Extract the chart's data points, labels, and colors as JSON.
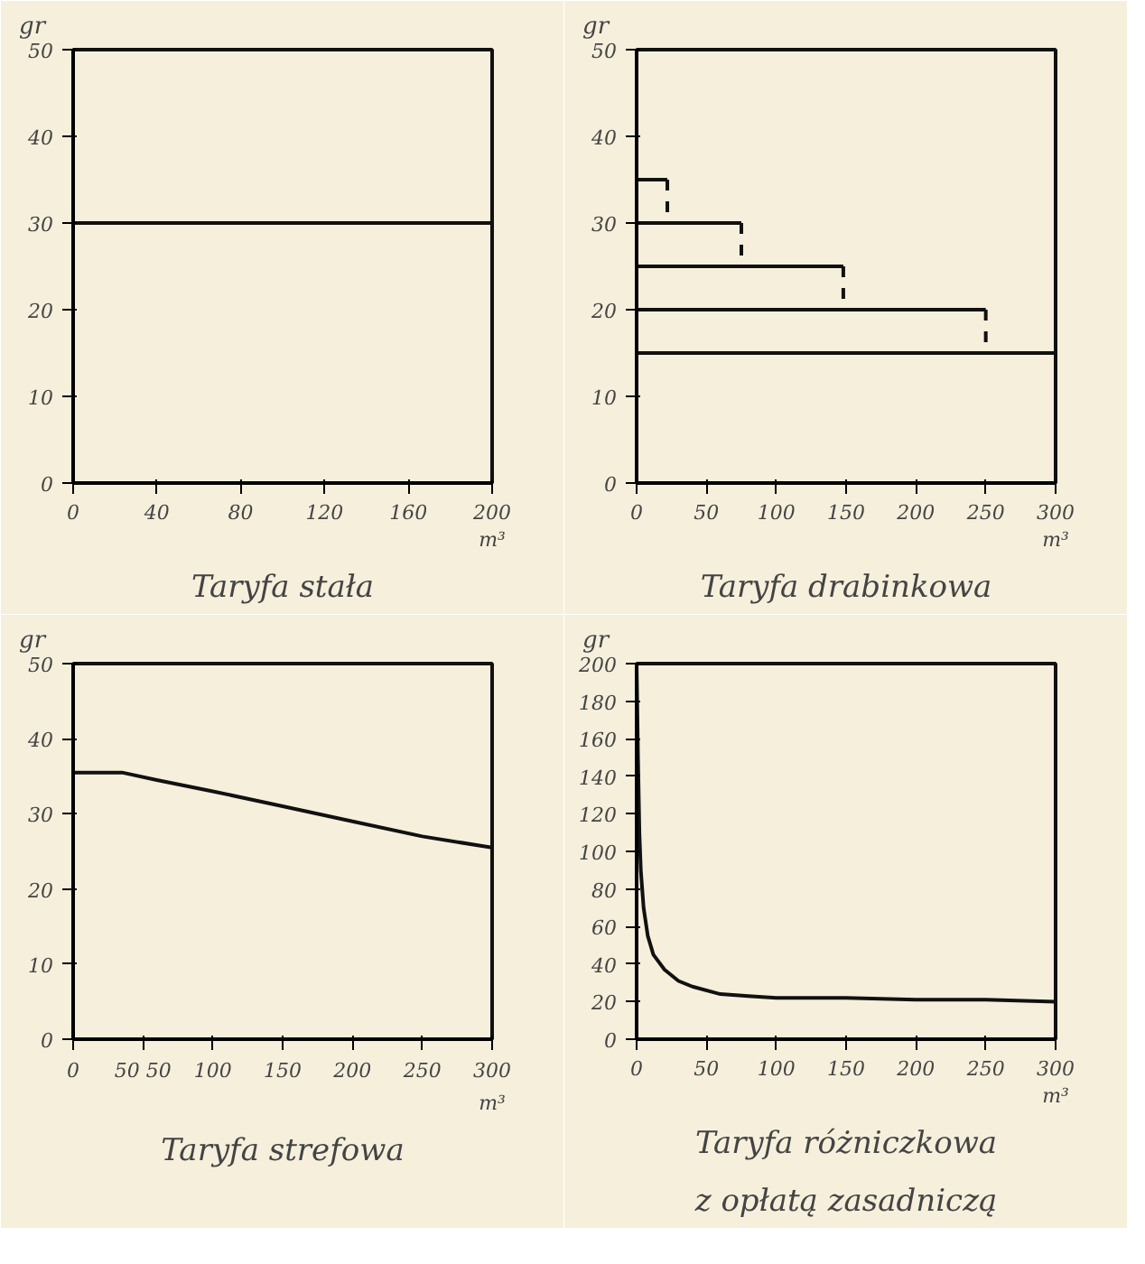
{
  "chart_data": [
    {
      "type": "line",
      "title": "Taryfa stała",
      "xlabel": "m³",
      "ylabel": "gr",
      "xlim": [
        0,
        200
      ],
      "ylim": [
        0,
        50
      ],
      "xticks": [
        0,
        40,
        80,
        120,
        160,
        200
      ],
      "yticks": [
        0,
        10,
        20,
        30,
        40,
        50
      ],
      "grid": false,
      "series": [
        {
          "color": "#111111",
          "x": [
            0,
            200
          ],
          "values": [
            30,
            30
          ]
        }
      ]
    },
    {
      "type": "line",
      "title": "Taryfa drabinkowa",
      "xlabel": "m³",
      "ylabel": "gr",
      "xlim": [
        0,
        300
      ],
      "ylim": [
        0,
        50
      ],
      "xticks": [
        0,
        50,
        100,
        150,
        200,
        250,
        300
      ],
      "yticks": [
        0,
        10,
        20,
        30,
        40,
        50
      ],
      "grid": false,
      "series": [
        {
          "color": "#111111",
          "x": [
            0,
            22
          ],
          "values": [
            35,
            35
          ]
        },
        {
          "color": "#111111",
          "x": [
            22,
            22
          ],
          "values": [
            35,
            30
          ],
          "line_style": "dashed"
        },
        {
          "color": "#111111",
          "x": [
            0,
            75
          ],
          "values": [
            30,
            30
          ]
        },
        {
          "color": "#111111",
          "x": [
            75,
            75
          ],
          "values": [
            30,
            25
          ],
          "line_style": "dashed"
        },
        {
          "color": "#111111",
          "x": [
            0,
            148
          ],
          "values": [
            25,
            25
          ]
        },
        {
          "color": "#111111",
          "x": [
            148,
            148
          ],
          "values": [
            25,
            20
          ],
          "line_style": "dashed"
        },
        {
          "color": "#111111",
          "x": [
            0,
            250
          ],
          "values": [
            20,
            20
          ]
        },
        {
          "color": "#111111",
          "x": [
            250,
            250
          ],
          "values": [
            20,
            15
          ],
          "line_style": "dashed"
        },
        {
          "color": "#111111",
          "x": [
            0,
            300
          ],
          "values": [
            15,
            15
          ]
        }
      ]
    },
    {
      "type": "line",
      "title": "Taryfa strefowa",
      "xlabel": "m³",
      "ylabel": "gr",
      "xlim": [
        0,
        300
      ],
      "ylim": [
        0,
        50
      ],
      "xticks": [
        0,
        {
          "value": 50,
          "label": "50 50"
        },
        100,
        150,
        200,
        250,
        300
      ],
      "yticks": [
        0,
        10,
        20,
        30,
        40,
        50
      ],
      "grid": false,
      "series": [
        {
          "color": "#111111",
          "x": [
            0,
            20,
            35,
            60,
            100,
            150,
            200,
            250,
            300
          ],
          "values": [
            35.5,
            35.5,
            35.5,
            34.5,
            33,
            31,
            29,
            27,
            25.5
          ]
        }
      ]
    },
    {
      "type": "line",
      "title": "Taryfa różniczkowa\nz opłatą zasadniczą",
      "xlabel": "m³",
      "ylabel": "gr",
      "xlim": [
        0,
        300
      ],
      "ylim": [
        0,
        200
      ],
      "xticks": [
        0,
        50,
        100,
        150,
        200,
        250,
        300
      ],
      "yticks": [
        0,
        20,
        40,
        60,
        80,
        100,
        120,
        140,
        160,
        180,
        200
      ],
      "grid": false,
      "series": [
        {
          "color": "#111111",
          "x": [
            0,
            1,
            2,
            3,
            5,
            8,
            12,
            20,
            30,
            40,
            60,
            80,
            100,
            150,
            200,
            250,
            300
          ],
          "values": [
            200,
            150,
            110,
            90,
            70,
            55,
            45,
            37,
            31,
            28,
            24,
            23,
            22,
            22,
            21,
            21,
            20
          ]
        }
      ]
    }
  ]
}
